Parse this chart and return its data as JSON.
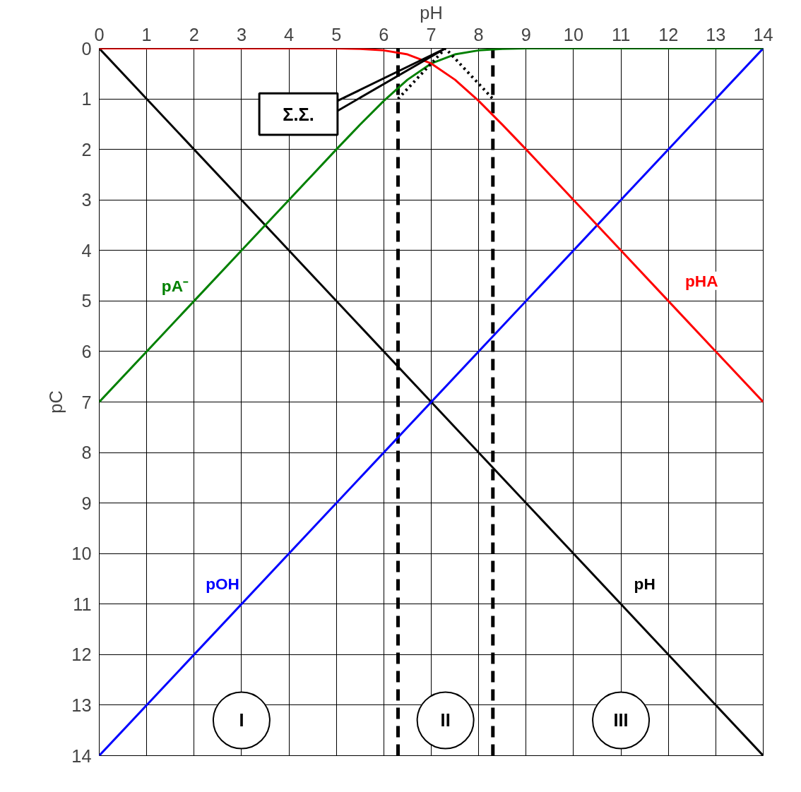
{
  "chart_data": {
    "type": "line",
    "xlabel": "pH",
    "ylabel": "pC",
    "xlim": [
      0,
      14
    ],
    "ylim": [
      14,
      0
    ],
    "xticks": [
      0,
      1,
      2,
      3,
      4,
      5,
      6,
      7,
      8,
      9,
      10,
      11,
      12,
      13,
      14
    ],
    "yticks": [
      0,
      1,
      2,
      3,
      4,
      5,
      6,
      7,
      8,
      9,
      10,
      11,
      12,
      13,
      14
    ],
    "grid": true,
    "line_style": "solid",
    "marker": "none",
    "series": [
      {
        "name": "pH",
        "color": "#000000",
        "x": [
          0,
          14
        ],
        "values": [
          0,
          14
        ]
      },
      {
        "name": "pOH",
        "color": "#0000ff",
        "x": [
          0,
          14
        ],
        "values": [
          14,
          0
        ]
      },
      {
        "name": "pA⁻",
        "color": "#008000",
        "x": [
          0,
          1,
          2,
          3,
          4,
          4.5,
          5,
          5.5,
          6,
          6.5,
          7,
          7.5,
          8,
          8.5,
          9,
          10,
          11,
          12,
          13,
          14
        ],
        "values": [
          7,
          6,
          5,
          4,
          3,
          2.5,
          2.0,
          1.51,
          1.04,
          0.62,
          0.3,
          0.12,
          0.04,
          0.01,
          0,
          0,
          0,
          0,
          0,
          0
        ]
      },
      {
        "name": "pHA",
        "color": "#ff0000",
        "x": [
          0,
          1,
          2,
          3,
          4,
          5,
          5.5,
          6,
          6.5,
          7,
          7.5,
          8,
          8.5,
          9,
          9.5,
          10,
          11,
          12,
          13,
          14
        ],
        "values": [
          0,
          0,
          0,
          0,
          0,
          0,
          0.01,
          0.04,
          0.12,
          0.3,
          0.62,
          1.04,
          1.51,
          2.0,
          2.5,
          3,
          4,
          5,
          6,
          7
        ]
      },
      {
        "color": "#000000",
        "line_style": "dotted",
        "x": [
          6.3,
          7.3,
          8.3
        ],
        "values": [
          1,
          0,
          1
        ]
      }
    ],
    "ref_lines": [
      {
        "axis": "x",
        "value": 6.3,
        "color": "#000000",
        "line_style": "dashed"
      },
      {
        "axis": "x",
        "value": 8.3,
        "color": "#000000",
        "line_style": "dashed"
      }
    ],
    "annotations": [
      {
        "text": "Σ.Σ.",
        "x": 7.3,
        "y": 0
      },
      "I",
      "II",
      "III"
    ]
  }
}
